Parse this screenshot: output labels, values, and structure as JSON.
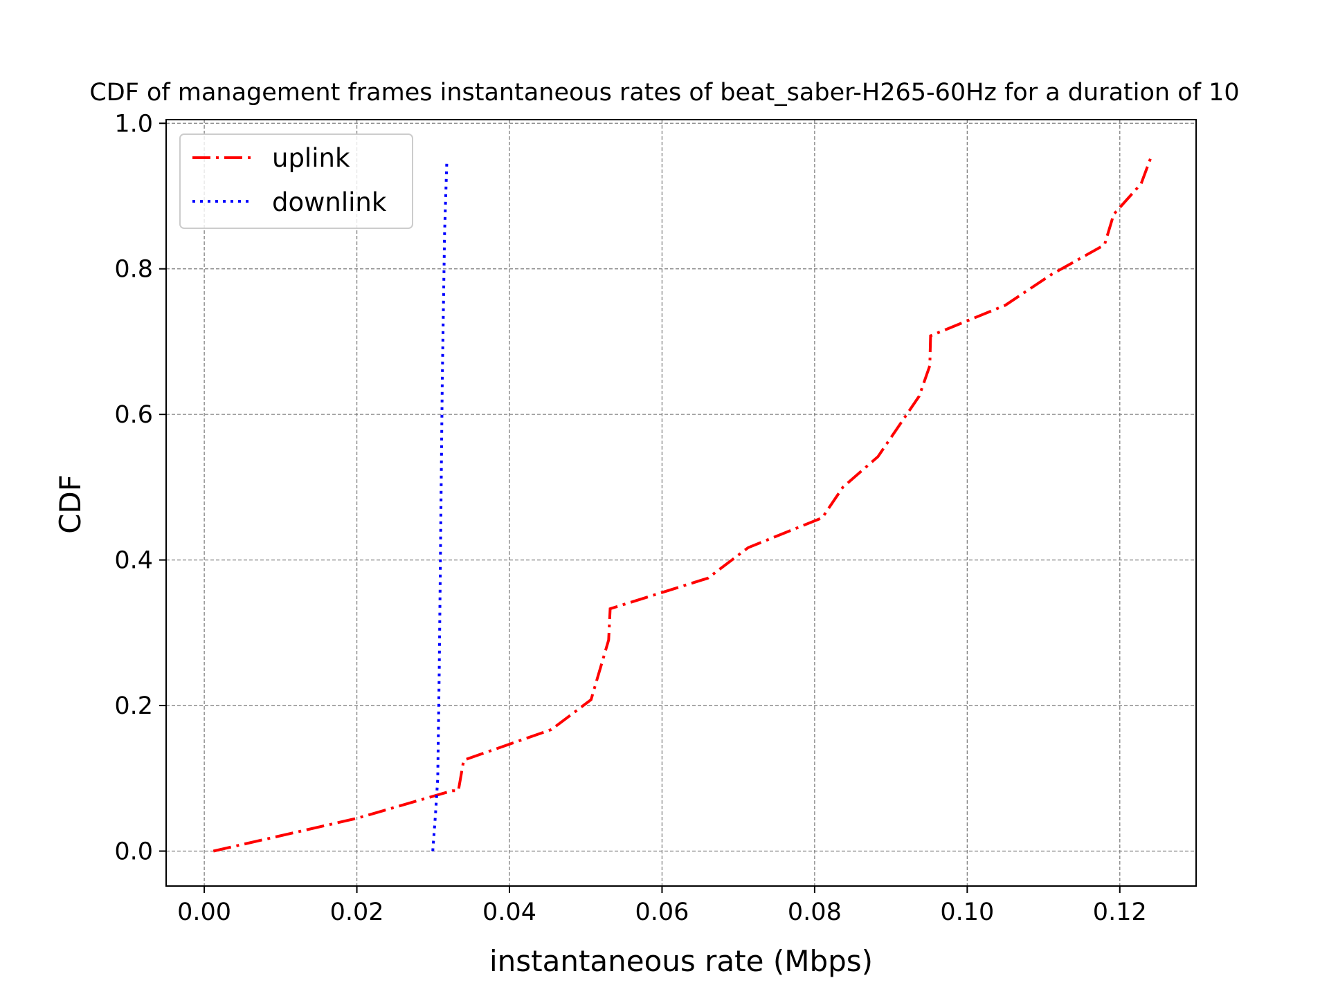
{
  "chart_data": {
    "type": "line",
    "title": "CDF of management frames instantaneous rates of beat_saber-H265-60Hz for a duration of 10",
    "xlabel": "instantaneous rate (Mbps)",
    "ylabel": "CDF",
    "xlim": [
      -0.005,
      0.13
    ],
    "ylim": [
      -0.048,
      1.005
    ],
    "x_ticks": [
      0.0,
      0.02,
      0.04,
      0.06,
      0.08,
      0.1,
      0.12
    ],
    "x_tick_labels": [
      "0.00",
      "0.02",
      "0.04",
      "0.06",
      "0.08",
      "0.10",
      "0.12"
    ],
    "y_ticks": [
      0.0,
      0.2,
      0.4,
      0.6,
      0.8,
      1.0
    ],
    "y_tick_labels": [
      "0.0",
      "0.2",
      "0.4",
      "0.6",
      "0.8",
      "1.0"
    ],
    "grid": true,
    "legend_position": "top-left",
    "series": [
      {
        "name": "uplink",
        "color": "#ff0000",
        "style": "dashdot",
        "points": [
          [
            0.0012,
            0.0
          ],
          [
            0.02,
            0.045
          ],
          [
            0.0325,
            0.083
          ],
          [
            0.0333,
            0.083
          ],
          [
            0.034,
            0.125
          ],
          [
            0.0455,
            0.167
          ],
          [
            0.0507,
            0.208
          ],
          [
            0.053,
            0.29
          ],
          [
            0.0532,
            0.333
          ],
          [
            0.066,
            0.375
          ],
          [
            0.0713,
            0.417
          ],
          [
            0.081,
            0.458
          ],
          [
            0.0837,
            0.5
          ],
          [
            0.0883,
            0.542
          ],
          [
            0.0937,
            0.625
          ],
          [
            0.0951,
            0.667
          ],
          [
            0.0952,
            0.708
          ],
          [
            0.105,
            0.75
          ],
          [
            0.111,
            0.792
          ],
          [
            0.118,
            0.833
          ],
          [
            0.1192,
            0.875
          ],
          [
            0.1228,
            0.917
          ],
          [
            0.1241,
            0.954
          ]
        ]
      },
      {
        "name": "downlink",
        "color": "#0000ff",
        "style": "dotted",
        "points": [
          [
            0.02995,
            0.0
          ],
          [
            0.0303,
            0.05
          ],
          [
            0.0306,
            0.1
          ],
          [
            0.0308,
            0.25
          ],
          [
            0.031,
            0.45
          ],
          [
            0.0312,
            0.65
          ],
          [
            0.0315,
            0.85
          ],
          [
            0.0318,
            0.95
          ]
        ]
      }
    ]
  }
}
